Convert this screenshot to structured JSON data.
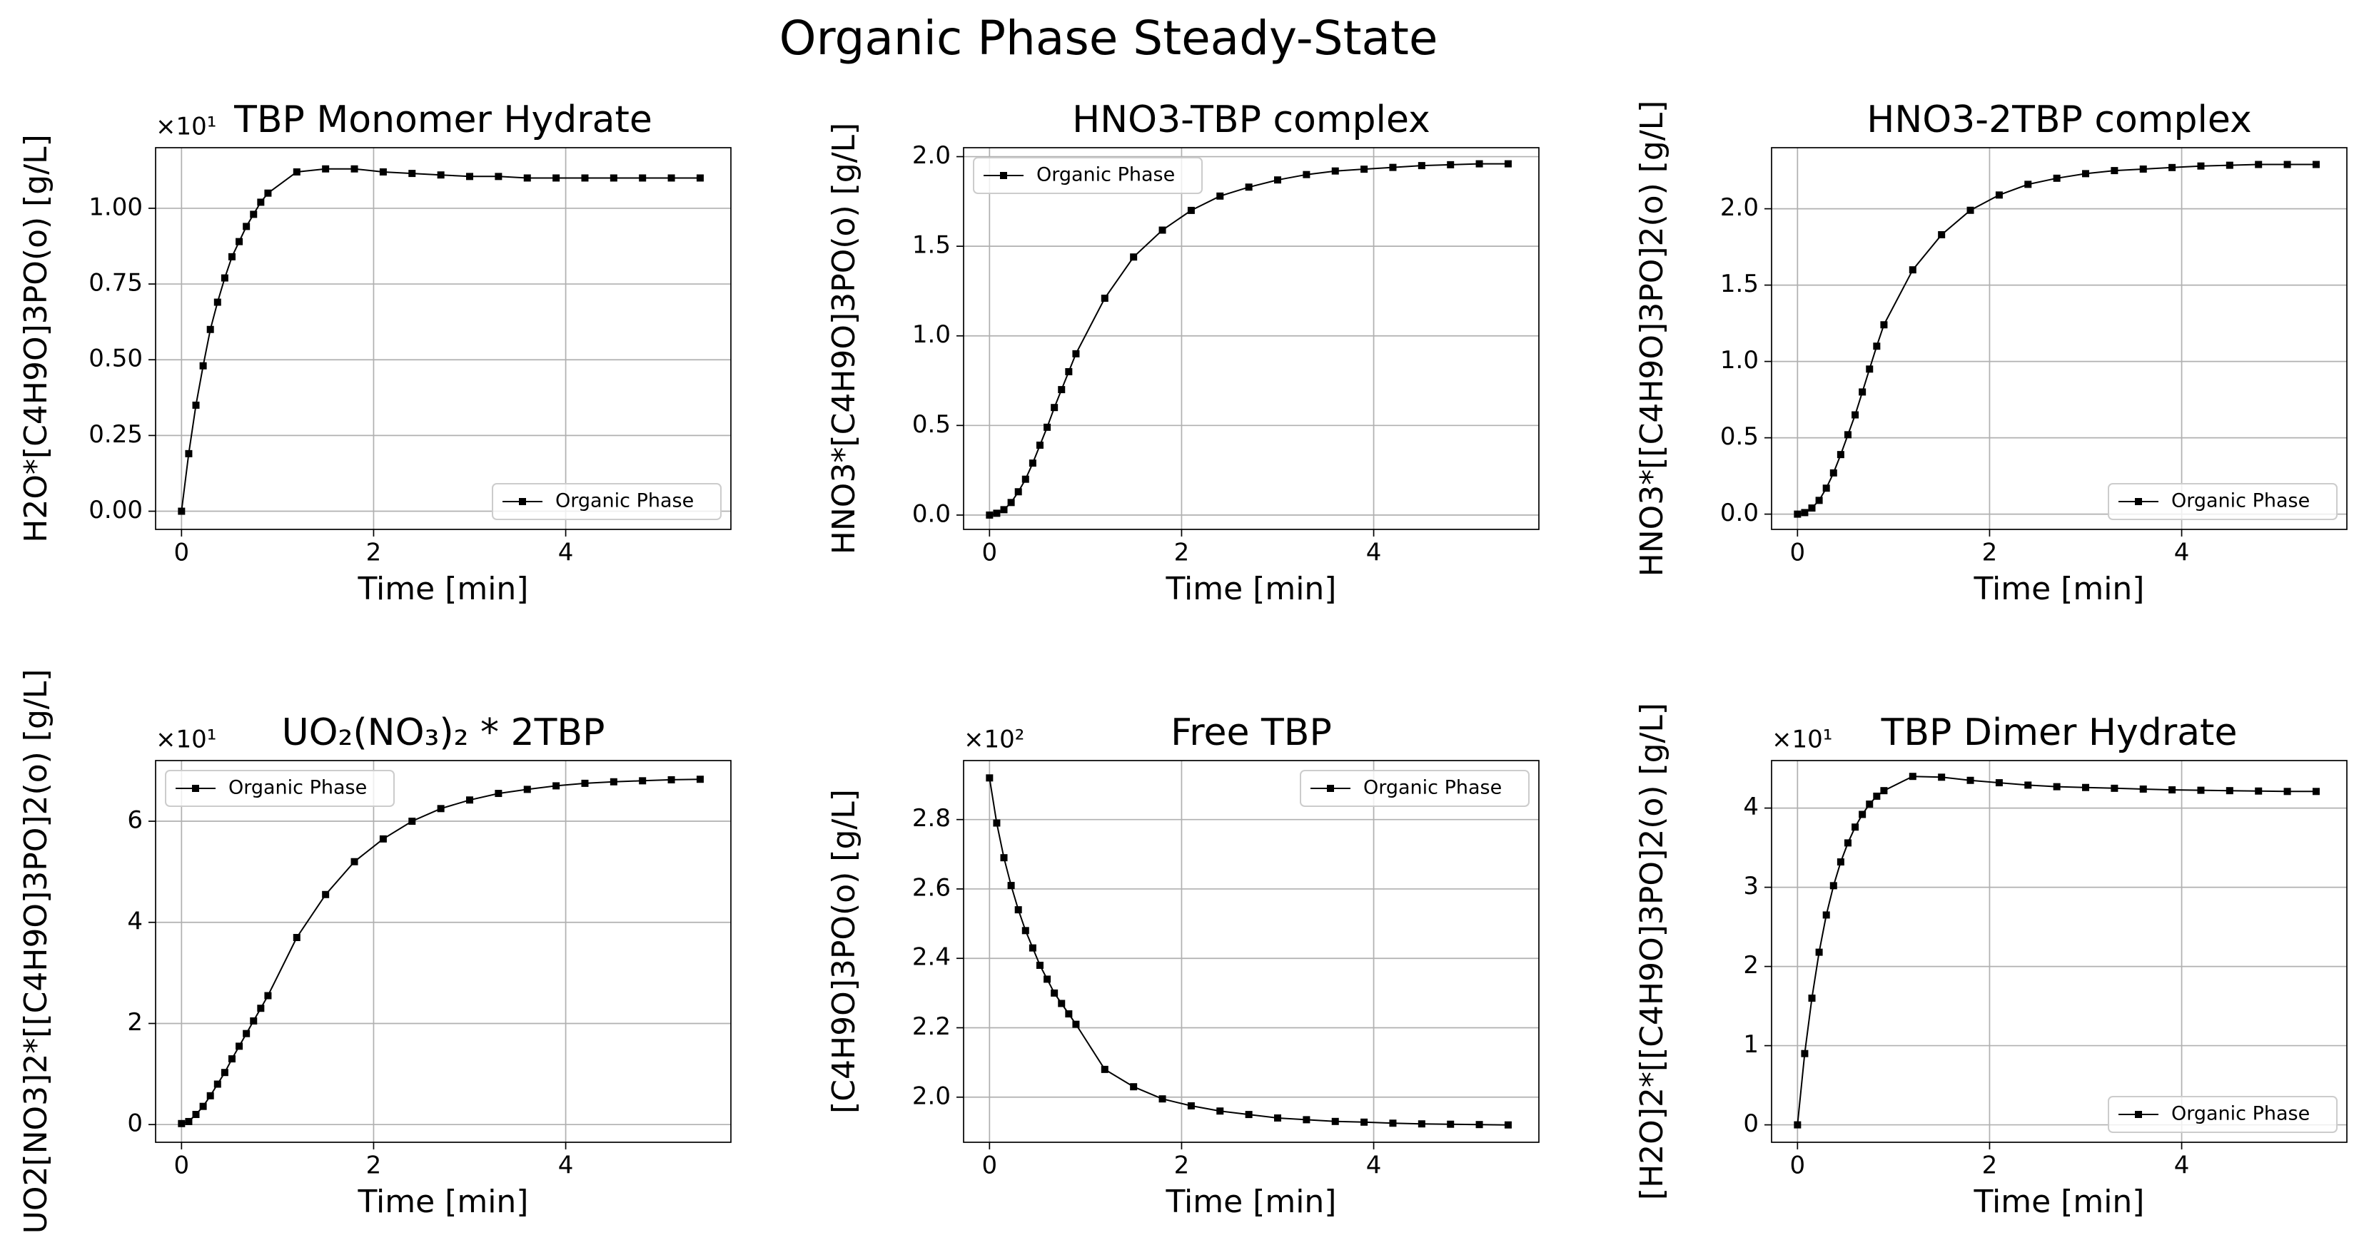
{
  "suptitle": "Organic Phase Steady-State",
  "chart_data": [
    {
      "type": "line",
      "title": "TBP Monomer Hydrate",
      "xlabel": "Time [min]",
      "ylabel": "H2O*[C4H9O]3PO(o) [g/L]",
      "y_offset_label": "×10¹",
      "x": [
        0,
        0.075,
        0.15,
        0.225,
        0.3,
        0.375,
        0.45,
        0.525,
        0.6,
        0.675,
        0.75,
        0.825,
        0.9,
        1.2,
        1.5,
        1.8,
        2.1,
        2.4,
        2.7,
        3.0,
        3.3,
        3.6,
        3.9,
        4.2,
        4.5,
        4.8,
        5.1,
        5.4
      ],
      "series": [
        {
          "name": "Organic Phase",
          "color": "#000000",
          "values": [
            0,
            0.19,
            0.35,
            0.48,
            0.6,
            0.69,
            0.77,
            0.84,
            0.89,
            0.94,
            0.98,
            1.02,
            1.05,
            1.12,
            1.13,
            1.13,
            1.12,
            1.115,
            1.11,
            1.105,
            1.105,
            1.1,
            1.1,
            1.1,
            1.1,
            1.1,
            1.1,
            1.1
          ]
        }
      ],
      "xlim": [
        -0.27,
        5.72
      ],
      "ylim": [
        -0.06,
        1.2
      ],
      "xticks": [
        0,
        2,
        4
      ],
      "yticks": [
        {
          "value": 0,
          "label": "0.00"
        },
        {
          "value": 0.25,
          "label": "0.25"
        },
        {
          "value": 0.5,
          "label": "0.50"
        },
        {
          "value": 0.75,
          "label": "0.75"
        },
        {
          "value": 1,
          "label": "1.00"
        }
      ],
      "grid": true,
      "legend": "lower right"
    },
    {
      "type": "line",
      "title": "HNO3-TBP complex",
      "xlabel": "Time [min]",
      "ylabel": "HNO3*[C4H9O]3PO(o) [g/L]",
      "x": [
        0,
        0.075,
        0.15,
        0.225,
        0.3,
        0.375,
        0.45,
        0.525,
        0.6,
        0.675,
        0.75,
        0.825,
        0.9,
        1.2,
        1.5,
        1.8,
        2.1,
        2.4,
        2.7,
        3.0,
        3.3,
        3.6,
        3.9,
        4.2,
        4.5,
        4.8,
        5.1,
        5.4
      ],
      "series": [
        {
          "name": "Organic Phase",
          "color": "#000000",
          "values": [
            0,
            0.01,
            0.03,
            0.07,
            0.13,
            0.2,
            0.29,
            0.39,
            0.49,
            0.6,
            0.7,
            0.8,
            0.9,
            1.21,
            1.44,
            1.59,
            1.7,
            1.78,
            1.83,
            1.87,
            1.9,
            1.92,
            1.93,
            1.94,
            1.95,
            1.955,
            1.96,
            1.96
          ]
        }
      ],
      "xlim": [
        -0.27,
        5.72
      ],
      "ylim": [
        -0.08,
        2.05
      ],
      "xticks": [
        0,
        2,
        4
      ],
      "yticks": [
        {
          "value": 0,
          "label": "0.0"
        },
        {
          "value": 0.5,
          "label": "0.5"
        },
        {
          "value": 1,
          "label": "1.0"
        },
        {
          "value": 1.5,
          "label": "1.5"
        },
        {
          "value": 2,
          "label": "2.0"
        }
      ],
      "grid": true,
      "legend": "upper left"
    },
    {
      "type": "line",
      "title": "HNO3-2TBP complex",
      "xlabel": "Time [min]",
      "ylabel": "HNO3*[[C4H9O]3PO]2(o) [g/L]",
      "x": [
        0,
        0.075,
        0.15,
        0.225,
        0.3,
        0.375,
        0.45,
        0.525,
        0.6,
        0.675,
        0.75,
        0.825,
        0.9,
        1.2,
        1.5,
        1.8,
        2.1,
        2.4,
        2.7,
        3.0,
        3.3,
        3.6,
        3.9,
        4.2,
        4.5,
        4.8,
        5.1,
        5.4
      ],
      "series": [
        {
          "name": "Organic Phase",
          "color": "#000000",
          "values": [
            0,
            0.01,
            0.04,
            0.09,
            0.17,
            0.27,
            0.39,
            0.52,
            0.65,
            0.8,
            0.95,
            1.1,
            1.24,
            1.6,
            1.83,
            1.99,
            2.09,
            2.16,
            2.2,
            2.23,
            2.25,
            2.26,
            2.27,
            2.28,
            2.285,
            2.29,
            2.29,
            2.29
          ]
        }
      ],
      "xlim": [
        -0.27,
        5.72
      ],
      "ylim": [
        -0.1,
        2.4
      ],
      "xticks": [
        0,
        2,
        4
      ],
      "yticks": [
        {
          "value": 0,
          "label": "0.0"
        },
        {
          "value": 0.5,
          "label": "0.5"
        },
        {
          "value": 1,
          "label": "1.0"
        },
        {
          "value": 1.5,
          "label": "1.5"
        },
        {
          "value": 2,
          "label": "2.0"
        }
      ],
      "grid": true,
      "legend": "lower right"
    },
    {
      "type": "line",
      "title": "UO₂(NO₃)₂ * 2TBP",
      "xlabel": "Time [min]",
      "ylabel": "UO2[NO3]2*[[C4H9O]3PO]2(o) [g/L]",
      "y_offset_label": "×10¹",
      "x": [
        0,
        0.075,
        0.15,
        0.225,
        0.3,
        0.375,
        0.45,
        0.525,
        0.6,
        0.675,
        0.75,
        0.825,
        0.9,
        1.2,
        1.5,
        1.8,
        2.1,
        2.4,
        2.7,
        3.0,
        3.3,
        3.6,
        3.9,
        4.2,
        4.5,
        4.8,
        5.1,
        5.4
      ],
      "series": [
        {
          "name": "Organic Phase",
          "color": "#000000",
          "values": [
            0.02,
            0.06,
            0.2,
            0.36,
            0.57,
            0.8,
            1.03,
            1.3,
            1.55,
            1.8,
            2.05,
            2.3,
            2.55,
            3.7,
            4.55,
            5.2,
            5.65,
            6.0,
            6.25,
            6.42,
            6.55,
            6.63,
            6.7,
            6.75,
            6.78,
            6.8,
            6.82,
            6.83
          ]
        }
      ],
      "xlim": [
        -0.27,
        5.72
      ],
      "ylim": [
        -0.35,
        7.2
      ],
      "xticks": [
        0,
        2,
        4
      ],
      "yticks": [
        0,
        2,
        4,
        6
      ],
      "grid": true,
      "legend": "upper left"
    },
    {
      "type": "line",
      "title": "Free TBP",
      "xlabel": "Time [min]",
      "ylabel": "[C4H9O]3PO(o) [g/L]",
      "y_offset_label": "×10²",
      "x": [
        0,
        0.075,
        0.15,
        0.225,
        0.3,
        0.375,
        0.45,
        0.525,
        0.6,
        0.675,
        0.75,
        0.825,
        0.9,
        1.2,
        1.5,
        1.8,
        2.1,
        2.4,
        2.7,
        3.0,
        3.3,
        3.6,
        3.9,
        4.2,
        4.5,
        4.8,
        5.1,
        5.4
      ],
      "series": [
        {
          "name": "Organic Phase",
          "color": "#000000",
          "values": [
            2.92,
            2.79,
            2.69,
            2.61,
            2.54,
            2.48,
            2.43,
            2.38,
            2.34,
            2.3,
            2.27,
            2.24,
            2.21,
            2.08,
            2.03,
            1.995,
            1.975,
            1.96,
            1.95,
            1.94,
            1.935,
            1.93,
            1.928,
            1.925,
            1.923,
            1.922,
            1.921,
            1.92
          ]
        }
      ],
      "xlim": [
        -0.27,
        5.72
      ],
      "ylim": [
        1.87,
        2.97
      ],
      "xticks": [
        0,
        2,
        4
      ],
      "yticks": [
        {
          "value": 2,
          "label": "2.0"
        },
        {
          "value": 2.2,
          "label": "2.2"
        },
        {
          "value": 2.4,
          "label": "2.4"
        },
        {
          "value": 2.6,
          "label": "2.6"
        },
        {
          "value": 2.8,
          "label": "2.8"
        }
      ],
      "grid": true,
      "legend": "upper right"
    },
    {
      "type": "line",
      "title": "TBP Dimer Hydrate",
      "xlabel": "Time [min]",
      "ylabel": "[H2O]2*[[C4H9O]3PO]2(o) [g/L]",
      "y_offset_label": "×10¹",
      "x": [
        0,
        0.075,
        0.15,
        0.225,
        0.3,
        0.375,
        0.45,
        0.525,
        0.6,
        0.675,
        0.75,
        0.825,
        0.9,
        1.2,
        1.5,
        1.8,
        2.1,
        2.4,
        2.7,
        3.0,
        3.3,
        3.6,
        3.9,
        4.2,
        4.5,
        4.8,
        5.1,
        5.4
      ],
      "series": [
        {
          "name": "Organic Phase",
          "color": "#000000",
          "values": [
            0,
            0.9,
            1.6,
            2.18,
            2.65,
            3.02,
            3.32,
            3.56,
            3.76,
            3.92,
            4.05,
            4.15,
            4.22,
            4.4,
            4.39,
            4.35,
            4.32,
            4.29,
            4.27,
            4.26,
            4.25,
            4.24,
            4.23,
            4.225,
            4.22,
            4.215,
            4.21,
            4.21
          ]
        }
      ],
      "xlim": [
        -0.27,
        5.72
      ],
      "ylim": [
        -0.22,
        4.6
      ],
      "xticks": [
        0,
        2,
        4
      ],
      "yticks": [
        0,
        1,
        2,
        3,
        4
      ],
      "grid": true,
      "legend": "lower right"
    }
  ]
}
